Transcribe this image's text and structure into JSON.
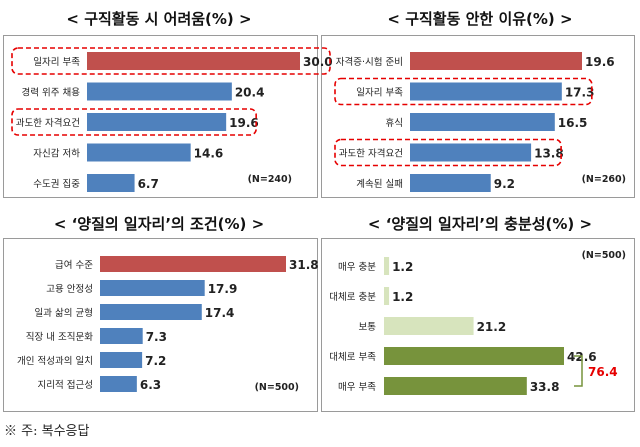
{
  "footnote": "※ 주: 복수응답",
  "colors": {
    "red": "#c0504d",
    "blue": "#4f81bd",
    "light_green": "#d7e4bd",
    "green": "#77933c",
    "highlight": "#e60000",
    "bracket_red": "#e60000"
  },
  "chart_data": [
    {
      "type": "bar",
      "title": "< 구직활동 시 어려움(%) >",
      "categories": [
        "일자리 부족",
        "경력 위주 채용",
        "과도한 자격요건",
        "자신감 저하",
        "수도권 집중"
      ],
      "values": [
        30.0,
        20.4,
        19.6,
        14.6,
        6.7
      ],
      "value_labels": [
        "30.0",
        "20.4",
        "19.6",
        "14.6",
        "6.7"
      ],
      "bar_colors": [
        "red",
        "blue",
        "blue",
        "blue",
        "blue"
      ],
      "highlighted": [
        0,
        2
      ],
      "note": "(N=240)",
      "xlim": [
        0,
        30
      ]
    },
    {
      "type": "bar",
      "title": "< 구직활동 안한 이유(%) >",
      "categories": [
        "자격증·시험 준비",
        "일자리 부족",
        "휴식",
        "과도한 자격요건",
        "계속된 실패"
      ],
      "values": [
        19.6,
        17.3,
        16.5,
        13.8,
        9.2
      ],
      "value_labels": [
        "19.6",
        "17.3",
        "16.5",
        "13.8",
        "9.2"
      ],
      "bar_colors": [
        "red",
        "blue",
        "blue",
        "blue",
        "blue"
      ],
      "highlighted": [
        1,
        3
      ],
      "note": "(N=260)",
      "xlim": [
        0,
        19.6
      ]
    },
    {
      "type": "bar",
      "title": "< ‘양질의 일자리’의 조건(%) >",
      "categories": [
        "급여 수준",
        "고용 안정성",
        "일과 삶의 균형",
        "직장 내 조직문화",
        "개인 적성과의 일치",
        "지리적 접근성"
      ],
      "values": [
        31.8,
        17.9,
        17.4,
        7.3,
        7.2,
        6.3
      ],
      "value_labels": [
        "31.8",
        "17.9",
        "17.4",
        "7.3",
        "7.2",
        "6.3"
      ],
      "bar_colors": [
        "red",
        "blue",
        "blue",
        "blue",
        "blue",
        "blue"
      ],
      "highlighted": [],
      "note": "(N=500)",
      "xlim": [
        0,
        31.8
      ]
    },
    {
      "type": "bar",
      "title": "< ‘양질의 일자리’의 충분성(%) >",
      "categories": [
        "매우 충분",
        "대체로 충분",
        "보통",
        "대체로 부족",
        "매우 부족"
      ],
      "values": [
        1.2,
        1.2,
        21.2,
        42.6,
        33.8
      ],
      "value_labels": [
        "1.2",
        "1.2",
        "21.2",
        "42.6",
        "33.8"
      ],
      "bar_colors": [
        "light_green",
        "light_green",
        "light_green",
        "green",
        "green"
      ],
      "highlighted": [],
      "note": "(N=500)",
      "bracket_label": "76.4",
      "xlim": [
        0,
        42.6
      ]
    }
  ]
}
